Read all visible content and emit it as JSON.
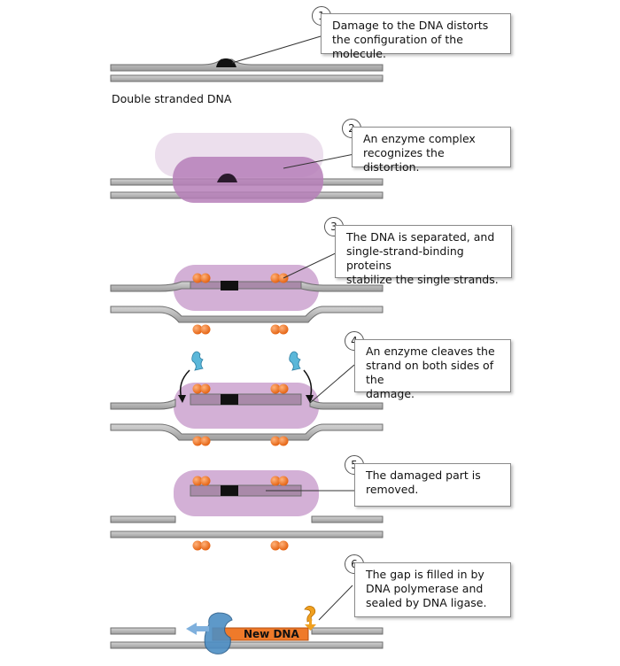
{
  "steps": [
    {
      "number": "1",
      "text": "Damage to the DNA distorts\nthe configuration of the molecule."
    },
    {
      "number": "2",
      "text": "An enzyme complex\nrecognizes the distortion."
    },
    {
      "number": "3",
      "text": "The DNA is separated, and\nsingle-strand-binding proteins\nstabilize the single strands."
    },
    {
      "number": "4",
      "text": "An enzyme cleaves the\nstrand on both sides of the\ndamage."
    },
    {
      "number": "5",
      "text": "The damaged part is\nremoved."
    },
    {
      "number": "6",
      "text": "The gap is filled in by\nDNA polymerase and\nsealed by DNA ligase."
    }
  ],
  "labels": {
    "double_stranded": "Double stranded DNA",
    "new_dna": "New DNA"
  },
  "colors": {
    "strand": "#b5b5b5",
    "strand_edge": "#6e6e6e",
    "enzyme_complex": "#c9a3cc",
    "protein": "#ef7a2a",
    "damage": "#111111",
    "nuclease": "#5bb7d9",
    "polymerase": "#4d8ec4",
    "new_dna": "#ef7a2a",
    "ligase": "#f0a020"
  }
}
